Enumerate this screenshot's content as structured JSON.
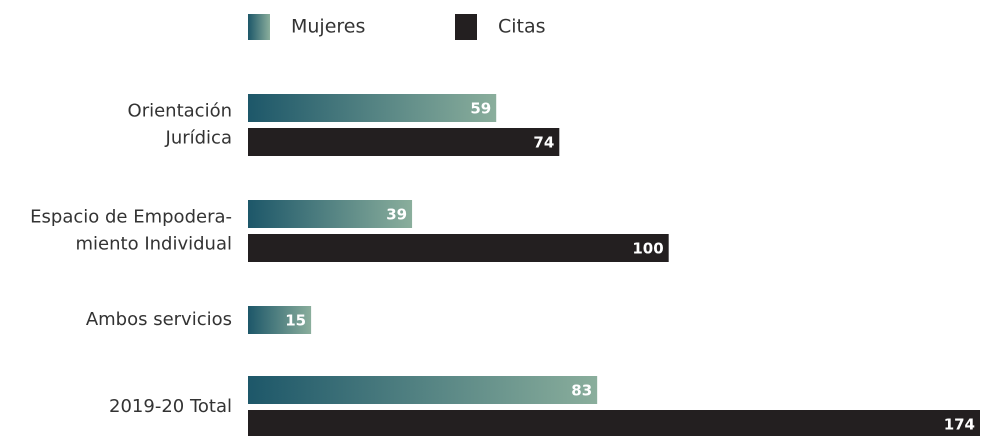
{
  "chart_data": {
    "type": "hbar",
    "categories": [
      [
        "Orientación",
        "Jurídica"
      ],
      [
        "Espacio de Empodera-",
        "miento Individual"
      ],
      [
        "Ambos servicios"
      ],
      [
        "2019-20 Total"
      ]
    ],
    "series": [
      {
        "name": "Mujeres",
        "color": [
          "#1d5769",
          "#8aae9c"
        ],
        "values": [
          59,
          39,
          15,
          83
        ]
      },
      {
        "name": "Citas",
        "color": "#231f20",
        "values": [
          74,
          100,
          null,
          174
        ]
      }
    ],
    "legend": "top"
  }
}
